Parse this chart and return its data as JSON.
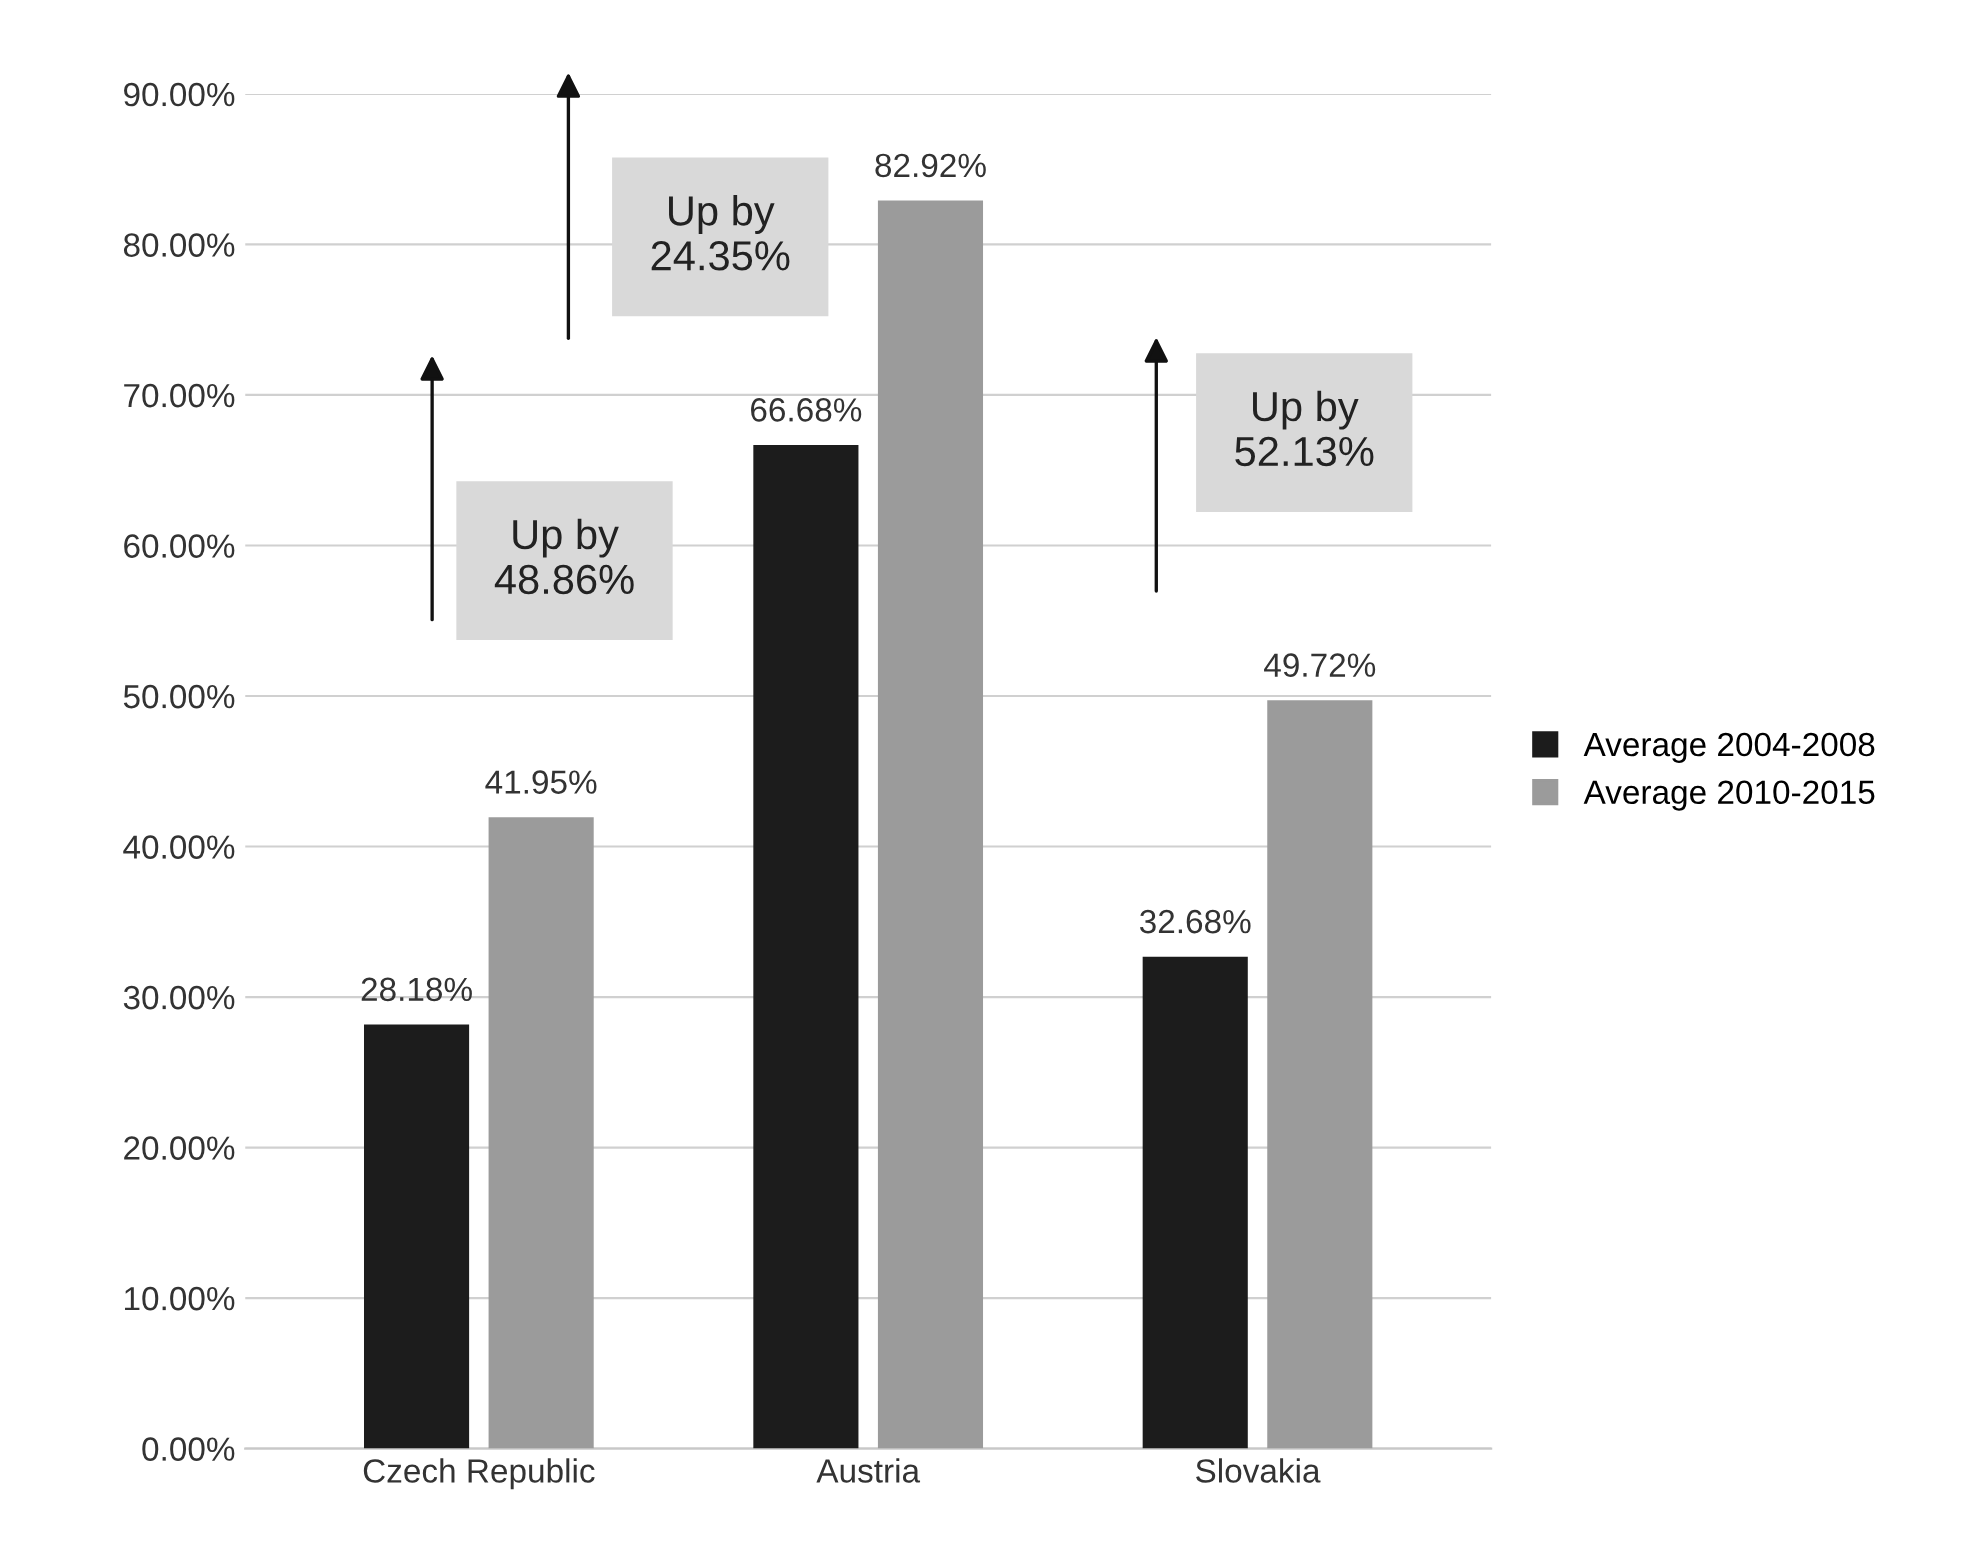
{
  "chart_data": {
    "type": "bar",
    "categories": [
      "Czech Republic",
      "Austria",
      "Slovakia"
    ],
    "series": [
      {
        "name": "Average 2004-2008",
        "color": "#1c1c1c",
        "values": [
          28.18,
          66.68,
          32.68
        ],
        "value_labels": [
          "28.18%",
          "66.68%",
          "32.68%"
        ]
      },
      {
        "name": "Average 2010-2015",
        "color": "#9b9b9b",
        "values": [
          41.95,
          82.92,
          49.72
        ],
        "value_labels": [
          "41.95%",
          "82.92%",
          "49.72%"
        ]
      }
    ],
    "ylim": [
      0,
      90
    ],
    "yticks": [
      {
        "value": 0,
        "label": "0.00%"
      },
      {
        "value": 10,
        "label": "10.00%"
      },
      {
        "value": 20,
        "label": "20.00%"
      },
      {
        "value": 30,
        "label": "30.00%"
      },
      {
        "value": 40,
        "label": "40.00%"
      },
      {
        "value": 50,
        "label": "50.00%"
      },
      {
        "value": 60,
        "label": "60.00%"
      },
      {
        "value": 70,
        "label": "70.00%"
      },
      {
        "value": 80,
        "label": "80.00%"
      },
      {
        "value": 90,
        "label": "90.00%"
      }
    ],
    "annotations": [
      "Up by\n48.86%",
      "Up by\n24.35%",
      "Up by\n52.13%"
    ],
    "grid": "y",
    "legend": "right"
  }
}
